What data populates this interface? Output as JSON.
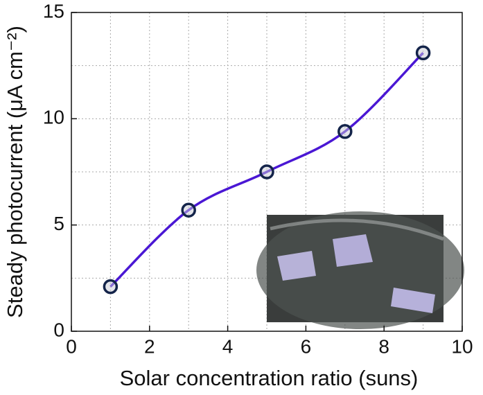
{
  "chart_data": {
    "type": "line",
    "xlabel": "Solar concentration ratio (suns)",
    "ylabel": "Steady photocurrent (μA cm⁻²)",
    "x": [
      1,
      3,
      5,
      7,
      9
    ],
    "series": [
      {
        "color": "#4a17d4",
        "values": [
          2.1,
          5.7,
          7.5,
          9.4,
          13.1
        ]
      }
    ],
    "xlim": [
      0,
      10
    ],
    "xticks": [
      0,
      2,
      4,
      6,
      8,
      10
    ],
    "xminor": [
      1,
      3,
      5,
      7,
      9
    ],
    "ylim": [
      0,
      15
    ],
    "yticks": [
      0,
      5,
      10,
      15
    ],
    "yminor": [
      2.5,
      7.5,
      12.5
    ],
    "grid": true
  }
}
